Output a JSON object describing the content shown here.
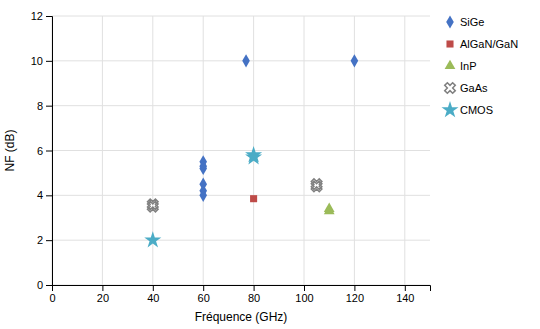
{
  "chart_data": {
    "type": "scatter",
    "xlabel": "Fréquence (GHz)",
    "ylabel": "NF (dB)",
    "xlim": [
      0,
      150
    ],
    "ylim": [
      0,
      12
    ],
    "xticks": [
      0,
      20,
      40,
      60,
      80,
      100,
      120,
      140
    ],
    "yticks": [
      0,
      2,
      4,
      6,
      8,
      10,
      12
    ],
    "grid": true,
    "legend": "right",
    "series": [
      {
        "name": "SiGe",
        "color": "#4472C4",
        "marker": "diamond",
        "x": [
          77,
          120,
          60,
          60,
          60,
          60,
          60,
          60
        ],
        "values": [
          10,
          10,
          5.5,
          5.3,
          5.2,
          4.5,
          4.2,
          4.0
        ]
      },
      {
        "name": "AlGaN/GaN",
        "color": "#BE4B48",
        "marker": "square",
        "x": [
          80
        ],
        "values": [
          3.85
        ]
      },
      {
        "name": "InP",
        "color": "#9BBB59",
        "marker": "triangle",
        "x": [
          110,
          110
        ],
        "values": [
          3.4,
          3.3
        ]
      },
      {
        "name": "GaAs",
        "color": "#808080",
        "marker": "x",
        "x": [
          40,
          40,
          105,
          105
        ],
        "values": [
          3.6,
          3.5,
          4.5,
          4.4
        ]
      },
      {
        "name": "CMOS",
        "color": "#4BACC6",
        "marker": "star",
        "x": [
          40,
          80,
          80
        ],
        "values": [
          2.0,
          5.8,
          5.7
        ]
      }
    ]
  }
}
